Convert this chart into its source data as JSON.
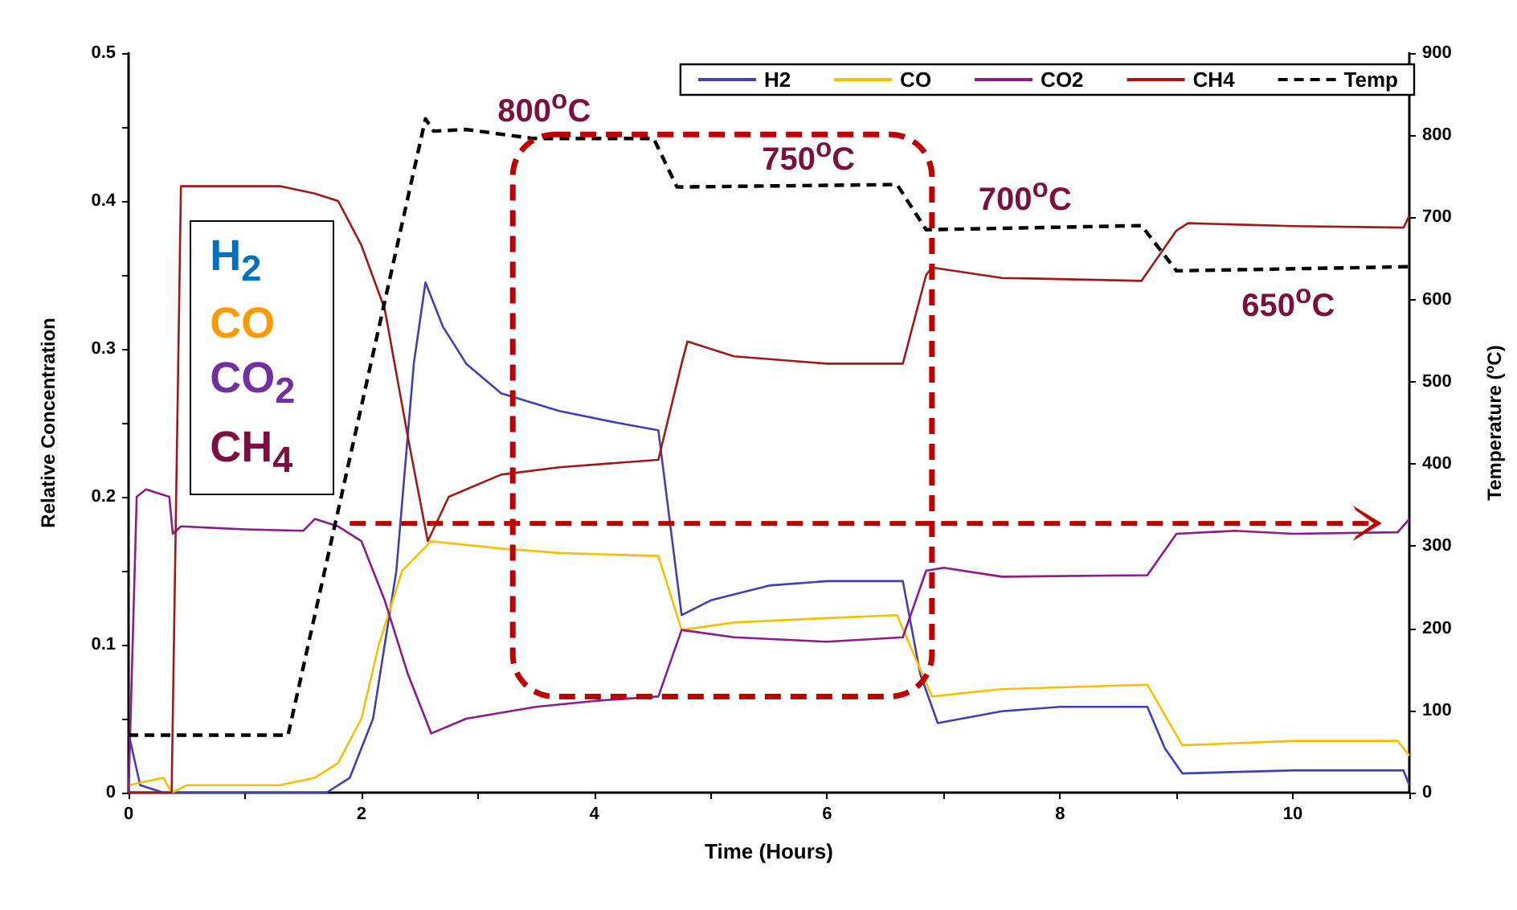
{
  "chart_data": {
    "type": "line",
    "xlabel": "Time (Hours)",
    "ylabel": "Relative Concentration",
    "y2label": "Temperature ($^{o}$C)",
    "xlim": [
      0,
      11
    ],
    "xticks": [
      0,
      {
        "value": 1,
        "label": null
      },
      2,
      {
        "value": 3,
        "label": null
      },
      4,
      {
        "value": 5,
        "label": null
      },
      6,
      {
        "value": 7,
        "label": null
      },
      8,
      {
        "value": 9,
        "label": null
      },
      10,
      {
        "value": 11,
        "label": null
      }
    ],
    "ylim": [
      0,
      0.5
    ],
    "yticks": [
      0,
      {
        "value": 0.05,
        "label": null
      },
      0.1,
      {
        "value": 0.15,
        "label": null
      },
      0.2,
      {
        "value": 0.25,
        "label": null
      },
      0.3,
      {
        "value": 0.35,
        "label": null
      },
      0.4,
      {
        "value": 0.45,
        "label": null
      },
      0.5
    ],
    "y2lim": [
      0,
      900
    ],
    "y2ticks": [
      0,
      100,
      200,
      300,
      400,
      500,
      600,
      700,
      800,
      900
    ],
    "grid": false,
    "legend": "top right",
    "marker": "none",
    "line_style": "solid",
    "annotations": [
      "800$^{o}$C",
      "750$^{o}$C",
      "700$^{o}$C",
      "650$^{o}$C",
      "H$_{2}$",
      "CO",
      "CO$_{2}$",
      "CH$_{4}$"
    ],
    "series": [
      {
        "name": "H2",
        "color": "#4040b0",
        "x": [
          0,
          0.1,
          0.3,
          1.7,
          1.9,
          2.1,
          2.3,
          2.45,
          2.55,
          2.7,
          2.9,
          3.2,
          3.7,
          4.2,
          4.55,
          4.75,
          5.0,
          5.5,
          6.0,
          6.65,
          6.8,
          6.95,
          7.5,
          8.0,
          8.75,
          8.9,
          9.05,
          10,
          10.95,
          11
        ],
        "values": [
          0.04,
          0.005,
          0,
          0,
          0.01,
          0.05,
          0.15,
          0.29,
          0.345,
          0.315,
          0.29,
          0.27,
          0.258,
          0.25,
          0.245,
          0.12,
          0.13,
          0.14,
          0.143,
          0.143,
          0.08,
          0.047,
          0.055,
          0.058,
          0.058,
          0.03,
          0.013,
          0.015,
          0.015,
          0.005
        ]
      },
      {
        "name": "CO",
        "color": "#f5c000",
        "x": [
          0,
          0.3,
          0.37,
          0.5,
          1.3,
          1.6,
          1.8,
          2.0,
          2.15,
          2.35,
          2.6,
          3.2,
          3.7,
          4.55,
          4.75,
          5.2,
          6.0,
          6.6,
          6.9,
          7.5,
          8.75,
          9.05,
          10,
          10.9,
          11
        ],
        "values": [
          0.005,
          0.01,
          0,
          0.005,
          0.005,
          0.01,
          0.02,
          0.05,
          0.1,
          0.15,
          0.17,
          0.165,
          0.162,
          0.16,
          0.11,
          0.115,
          0.118,
          0.12,
          0.065,
          0.07,
          0.073,
          0.032,
          0.035,
          0.035,
          0.025
        ]
      },
      {
        "name": "CO2",
        "color": "#8b1a8b",
        "x": [
          0,
          0.07,
          0.15,
          0.35,
          0.38,
          0.45,
          1.0,
          1.5,
          1.6,
          1.8,
          2.0,
          2.2,
          2.4,
          2.6,
          2.9,
          3.5,
          4.0,
          4.55,
          4.75,
          5.2,
          6.0,
          6.65,
          6.85,
          7.0,
          7.5,
          8.75,
          9.0,
          9.5,
          10,
          10.9,
          11
        ],
        "values": [
          0,
          0.2,
          0.205,
          0.2,
          0.175,
          0.18,
          0.178,
          0.177,
          0.185,
          0.18,
          0.17,
          0.13,
          0.08,
          0.04,
          0.05,
          0.058,
          0.062,
          0.065,
          0.11,
          0.105,
          0.102,
          0.105,
          0.15,
          0.152,
          0.146,
          0.147,
          0.175,
          0.177,
          0.175,
          0.176,
          0.185
        ]
      },
      {
        "name": "CH4",
        "color": "#a01818",
        "x": [
          0,
          0.37,
          0.45,
          1.3,
          1.6,
          1.8,
          2.0,
          2.2,
          2.4,
          2.57,
          2.75,
          3.2,
          3.7,
          4.55,
          4.75,
          4.8,
          5.2,
          6.0,
          6.65,
          6.85,
          6.9,
          7.5,
          8.7,
          9.0,
          9.1,
          10,
          10.95,
          11
        ],
        "values": [
          0,
          0,
          0.41,
          0.41,
          0.405,
          0.4,
          0.37,
          0.327,
          0.24,
          0.17,
          0.2,
          0.215,
          0.22,
          0.225,
          0.29,
          0.305,
          0.295,
          0.29,
          0.29,
          0.35,
          0.355,
          0.348,
          0.346,
          0.38,
          0.385,
          0.383,
          0.382,
          0.39
        ]
      },
      {
        "name": "Temp",
        "color": "#000000",
        "axis": "y2",
        "line_style": "dashed",
        "x": [
          0,
          1.37,
          2.55,
          2.62,
          2.9,
          3.48,
          4.51,
          4.71,
          6.6,
          6.85,
          8.7,
          9.0,
          11
        ],
        "values": [
          70,
          70,
          820,
          805,
          807,
          796,
          796,
          737,
          740,
          685,
          690,
          635,
          640
        ]
      }
    ]
  }
}
